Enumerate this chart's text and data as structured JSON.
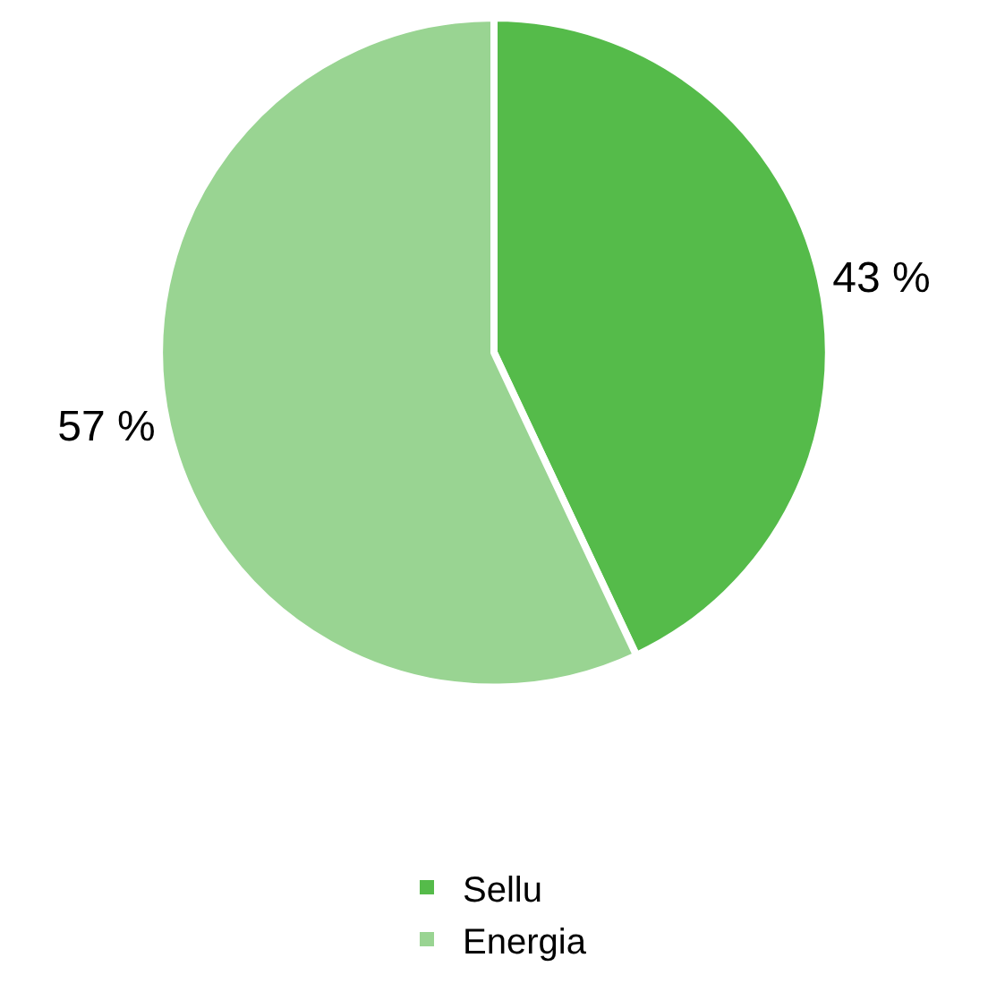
{
  "chart_data": {
    "type": "pie",
    "categories": [
      "Sellu",
      "Energia"
    ],
    "values": [
      43,
      57
    ],
    "value_labels": [
      "43 %",
      "57 %"
    ],
    "colors": [
      "#55bb4a",
      "#99d492"
    ],
    "legend": "bottom"
  }
}
